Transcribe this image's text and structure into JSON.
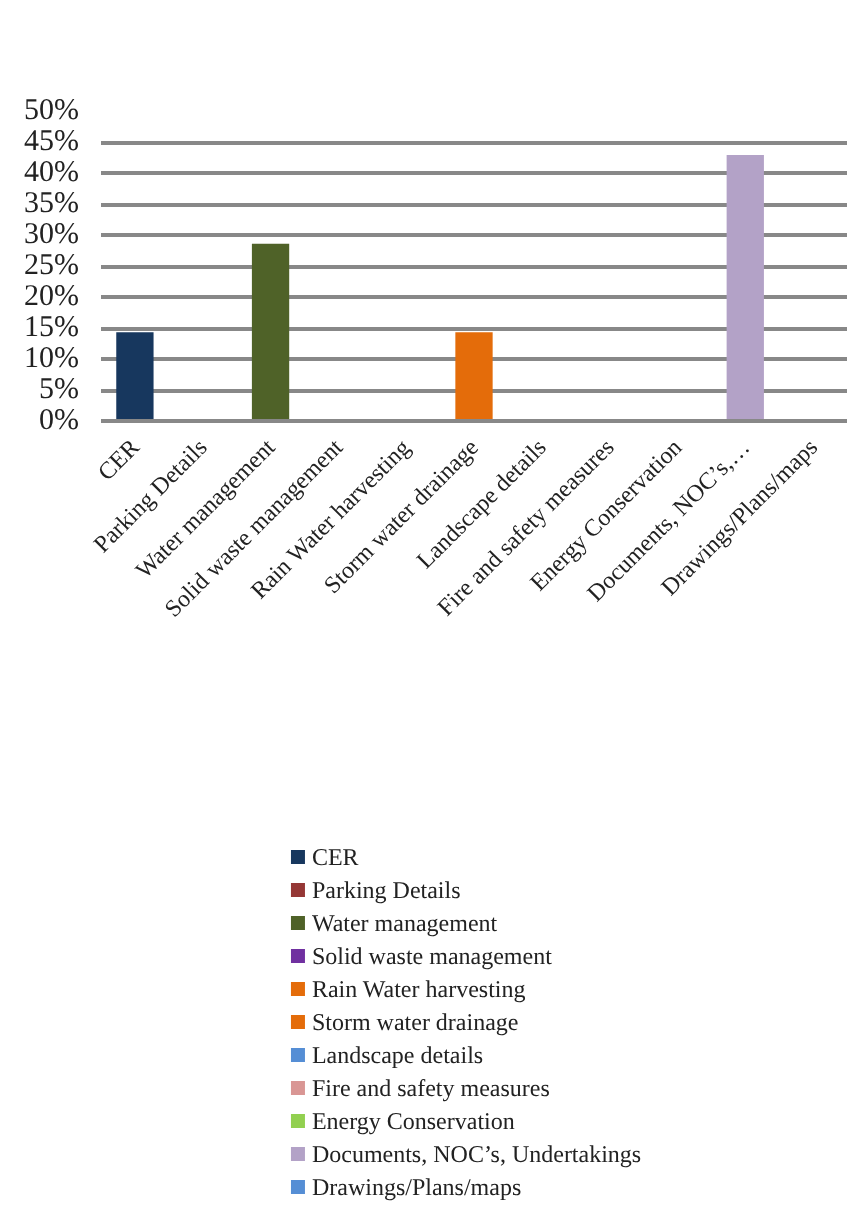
{
  "chart_data": {
    "type": "bar",
    "stacked": true,
    "categories": [
      "CER",
      "Parking Details",
      "Water management",
      "Solid waste management",
      "Rain Water harvesting",
      "Storm water drainage",
      "Landscape details",
      "Fire and safety measures",
      "Energy Conservation",
      "Documents, NOC’s,…",
      "Drawings/Plans/maps"
    ],
    "series": [
      {
        "name": "CER",
        "color": "#17375e",
        "values": [
          14.3,
          null,
          null,
          null,
          null,
          null,
          null,
          null,
          null,
          null,
          null
        ]
      },
      {
        "name": "Parking Details",
        "color": "#953735",
        "values": [
          null,
          0,
          null,
          null,
          null,
          null,
          null,
          null,
          null,
          null,
          null
        ]
      },
      {
        "name": "Water management",
        "color": "#4f6228",
        "values": [
          null,
          null,
          28.6,
          null,
          null,
          null,
          null,
          null,
          null,
          null,
          null
        ]
      },
      {
        "name": "Solid waste management",
        "color": "#7030a0",
        "values": [
          null,
          null,
          null,
          0,
          null,
          null,
          null,
          null,
          null,
          null,
          null
        ]
      },
      {
        "name": "Rain Water harvesting",
        "color": "#e46c0a",
        "values": [
          null,
          null,
          null,
          null,
          0,
          null,
          null,
          null,
          null,
          null,
          null
        ]
      },
      {
        "name": "Storm water drainage",
        "color": "#e46c0a",
        "values": [
          null,
          null,
          null,
          null,
          null,
          14.3,
          null,
          null,
          null,
          null,
          null
        ]
      },
      {
        "name": "Landscape details",
        "color": "#558ed5",
        "values": [
          null,
          null,
          null,
          null,
          null,
          null,
          0,
          null,
          null,
          null,
          null
        ]
      },
      {
        "name": "Fire and safety measures",
        "color": "#d99694",
        "values": [
          null,
          null,
          null,
          null,
          null,
          null,
          null,
          0,
          null,
          null,
          null
        ]
      },
      {
        "name": "Energy Conservation",
        "color": "#92d050",
        "values": [
          null,
          null,
          null,
          null,
          null,
          null,
          null,
          null,
          0,
          null,
          null
        ]
      },
      {
        "name": "Documents, NOC’s, Undertakings",
        "color": "#b3a2c7",
        "values": [
          null,
          null,
          null,
          null,
          null,
          null,
          null,
          null,
          null,
          42.9,
          null
        ]
      },
      {
        "name": "Drawings/Plans/maps",
        "color": "#558ed5",
        "values": [
          null,
          null,
          null,
          null,
          null,
          null,
          null,
          null,
          null,
          null,
          0
        ]
      }
    ],
    "ylim": [
      0,
      50
    ],
    "yticks": [
      {
        "value": 0,
        "label": "0%"
      },
      {
        "value": 5,
        "label": "5%"
      },
      {
        "value": 10,
        "label": "10%"
      },
      {
        "value": 15,
        "label": "15%"
      },
      {
        "value": 20,
        "label": "20%"
      },
      {
        "value": 25,
        "label": "25%"
      },
      {
        "value": 30,
        "label": "30%"
      },
      {
        "value": 35,
        "label": "35%"
      },
      {
        "value": 40,
        "label": "40%"
      },
      {
        "value": 45,
        "label": "45%"
      },
      {
        "value": 50,
        "label": "50%"
      }
    ],
    "grid": "y",
    "legend": "bottom"
  }
}
